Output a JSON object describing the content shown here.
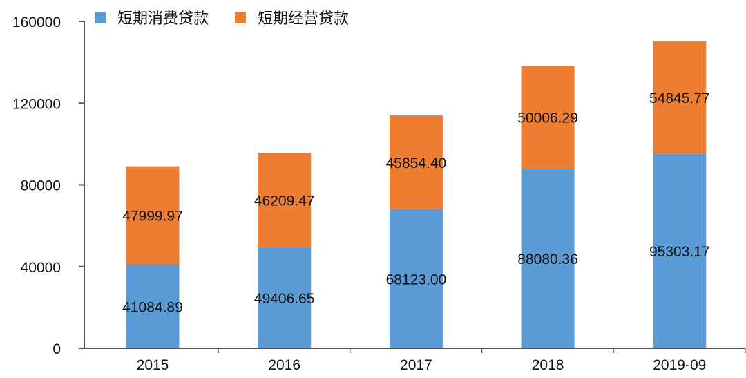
{
  "chart_data": {
    "type": "bar",
    "stacked": true,
    "categories": [
      "2015",
      "2016",
      "2017",
      "2018",
      "2019-09"
    ],
    "series": [
      {
        "name": "短期消费贷款",
        "color": "#5B9BD5",
        "values": [
          41084.89,
          49406.65,
          68123.0,
          88080.36,
          95303.17
        ]
      },
      {
        "name": "短期经营贷款",
        "color": "#ED7D31",
        "values": [
          47999.97,
          46209.47,
          45854.4,
          50006.29,
          54845.77
        ]
      }
    ],
    "yticks": [
      "0",
      "40000",
      "80000",
      "120000",
      "160000"
    ],
    "ylim": [
      0,
      160000
    ],
    "grid": false,
    "legend": "top-left",
    "title": "",
    "xlabel": "",
    "ylabel": ""
  }
}
